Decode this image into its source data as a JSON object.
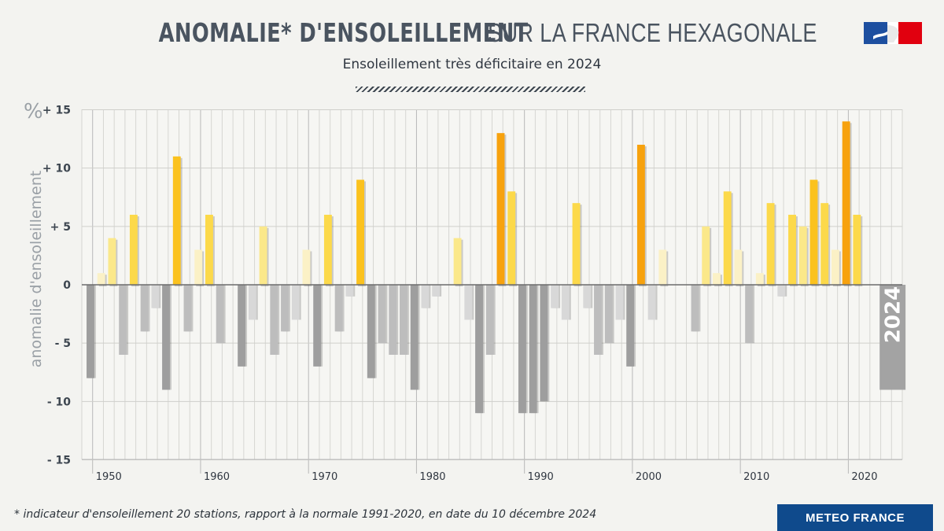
{
  "header": {
    "title_strong": "ANOMALIE* D'ENSOLEILLEMENT",
    "title_light": "SUR LA FRANCE HEXAGONALE",
    "subtitle": "Ensoleillement très déficitaire en 2024"
  },
  "footer": {
    "footnote": "*  indicateur d'ensoleillement 20 stations, rapport à la normale 1991-2020, en date du 10 décembre 2024",
    "brand": "METEO FRANCE"
  },
  "colors": {
    "negative_dark": "#9e9e9e",
    "negative_mid": "#bdbdbd",
    "negative_light": "#d8d8d8",
    "positive_pale": "#fbf1c6",
    "positive_light": "#fbe88a",
    "positive_mid": "#fcd94a",
    "positive_strong": "#fbc21e",
    "positive_max": "#f7a20e",
    "highlight": "#a3a3a3",
    "logo_blue": "#1d4fa0",
    "logo_red": "#e1000f"
  },
  "chart_data": {
    "type": "bar",
    "ylabel": "anomalie d'ensoleillement",
    "unit_label": "%",
    "ylim": [
      -15,
      15
    ],
    "yticks": [
      15,
      10,
      5,
      0,
      -5,
      -10,
      -15
    ],
    "ytick_labels": [
      "+ 15",
      "+ 10",
      "+ 5",
      "0",
      "- 5",
      "- 10",
      "- 15"
    ],
    "xtick_labels": [
      "1950",
      "1960",
      "1970",
      "1980",
      "1990",
      "2000",
      "2010",
      "2020"
    ],
    "highlight_label": "2024",
    "grid": true,
    "years": [
      1950,
      1951,
      1952,
      1953,
      1954,
      1955,
      1956,
      1957,
      1958,
      1959,
      1960,
      1961,
      1962,
      1963,
      1964,
      1965,
      1966,
      1967,
      1968,
      1969,
      1970,
      1971,
      1972,
      1973,
      1974,
      1975,
      1976,
      1977,
      1978,
      1979,
      1980,
      1981,
      1982,
      1983,
      1984,
      1985,
      1986,
      1987,
      1988,
      1989,
      1990,
      1991,
      1992,
      1993,
      1994,
      1995,
      1996,
      1997,
      1998,
      1999,
      2000,
      2001,
      2002,
      2003,
      2004,
      2005,
      2006,
      2007,
      2008,
      2009,
      2010,
      2011,
      2012,
      2013,
      2014,
      2015,
      2016,
      2017,
      2018,
      2019,
      2020,
      2021,
      2022,
      2023,
      2024
    ],
    "values": [
      -8,
      1,
      4,
      -6,
      6,
      -4,
      -2,
      -9,
      11,
      -4,
      3,
      6,
      -5,
      0,
      -7,
      -3,
      5,
      -6,
      -4,
      -3,
      3,
      -7,
      6,
      -4,
      -1,
      9,
      -8,
      -5,
      -6,
      -6,
      -9,
      -2,
      -1,
      0,
      4,
      -3,
      -11,
      -6,
      13,
      8,
      -11,
      -11,
      -10,
      -2,
      -3,
      7,
      -2,
      -6,
      -5,
      -3,
      -7,
      12,
      -3,
      3,
      0,
      0,
      -4,
      5,
      1,
      8,
      3,
      -5,
      1,
      7,
      -1,
      6,
      5,
      9,
      7,
      3,
      14,
      6,
      0,
      0,
      -9
    ]
  }
}
